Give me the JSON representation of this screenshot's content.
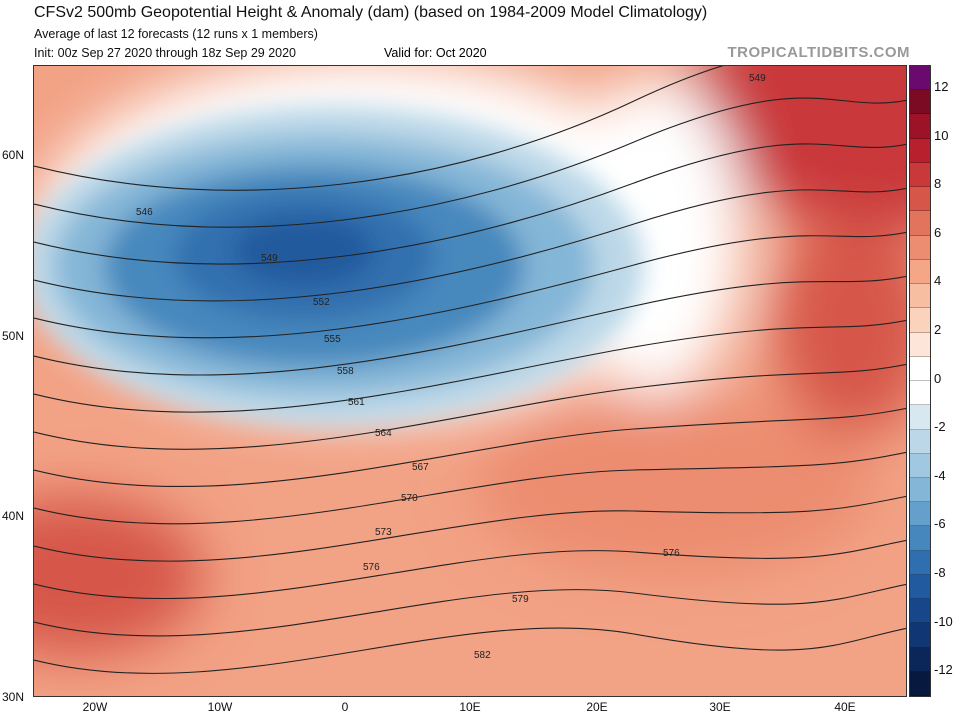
{
  "header": {
    "title": "CFSv2 500mb Geopotential Height & Anomaly (dam) (based on 1984-2009 Model Climatology)",
    "subtitle": "Average of last 12 forecasts (12 runs x 1 members)",
    "init": "Init: 00z Sep 27 2020 through 18z Sep 29 2020",
    "valid": "Valid for: Oct 2020",
    "brand": "TROPICALTIDBITS.COM"
  },
  "axes": {
    "lat_labels": [
      "60N",
      "50N",
      "40N",
      "30N"
    ],
    "lon_labels": [
      "20W",
      "10W",
      "0",
      "10E",
      "20E",
      "30E",
      "40E"
    ]
  },
  "contour_labels": [
    "549",
    "546",
    "549",
    "552",
    "555",
    "558",
    "561",
    "564",
    "567",
    "570",
    "573",
    "576",
    "576",
    "579",
    "582"
  ],
  "colorbar": {
    "labels": [
      "12",
      "10",
      "8",
      "6",
      "4",
      "2",
      "0",
      "-2",
      "-4",
      "-6",
      "-8",
      "-10",
      "-12"
    ],
    "colors": [
      "#6a0a6e",
      "#7a0b22",
      "#9c1227",
      "#b8202e",
      "#c9393a",
      "#d6574a",
      "#e2735d",
      "#ec8c70",
      "#f4a686",
      "#f8bea2",
      "#fbd3bd",
      "#fde6d9",
      "#ffffff",
      "#ffffff",
      "#d8e8f1",
      "#bcd8e8",
      "#a0c8e0",
      "#84b6d7",
      "#64a0cb",
      "#4688bd",
      "#306faf",
      "#215a9e",
      "#17478a",
      "#103673",
      "#0b2659",
      "#08193f"
    ]
  }
}
